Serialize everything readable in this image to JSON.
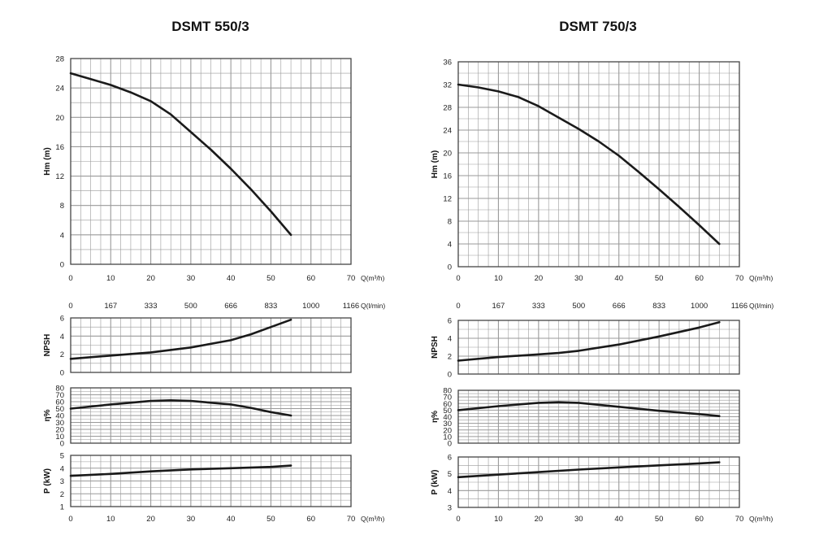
{
  "colors": {
    "curve": "#1a1a1a",
    "grid": "#9a9a9a",
    "frame": "#444444"
  },
  "chart_data": [
    {
      "type": "line",
      "title": "DSMT 550/3",
      "flow_label_m3h": "Q(m³/h)",
      "flow_label_lmin": "Q(l/min)",
      "x_ticks_m3h": [
        "0",
        "10",
        "20",
        "30",
        "40",
        "50",
        "60",
        "70"
      ],
      "x_ticks_lmin": [
        "0",
        "167",
        "333",
        "500",
        "666",
        "833",
        "1000",
        "1166"
      ],
      "xlim": [
        0,
        70
      ],
      "panels": [
        {
          "ylabel": "Hm  (m)",
          "ylim": [
            0,
            28
          ],
          "y_ticks": [
            "0",
            "4",
            "8",
            "12",
            "16",
            "20",
            "24",
            "28"
          ],
          "x": [
            0,
            5,
            10,
            15,
            20,
            25,
            30,
            35,
            40,
            45,
            50,
            55
          ],
          "y": [
            26,
            25.2,
            24.4,
            23.4,
            22.2,
            20.4,
            18.0,
            15.6,
            13.0,
            10.2,
            7.2,
            4.0
          ]
        },
        {
          "ylabel": "NPSH",
          "ylim": [
            0,
            6
          ],
          "y_ticks": [
            "0",
            "2",
            "4",
            "6"
          ],
          "x": [
            0,
            10,
            20,
            30,
            40,
            45,
            50,
            55
          ],
          "y": [
            1.5,
            1.85,
            2.2,
            2.75,
            3.55,
            4.2,
            5.0,
            5.8
          ]
        },
        {
          "ylabel": "η%",
          "ylim": [
            0,
            80
          ],
          "y_ticks": [
            "0",
            "10",
            "20",
            "30",
            "40",
            "50",
            "60",
            "70",
            "80"
          ],
          "x": [
            0,
            10,
            20,
            25,
            30,
            40,
            45,
            50,
            55
          ],
          "y": [
            50,
            56,
            61,
            62,
            61,
            56,
            51,
            45,
            40
          ]
        },
        {
          "ylabel": "P  (kW)",
          "ylim": [
            1,
            5
          ],
          "y_ticks": [
            "1",
            "2",
            "3",
            "4",
            "5"
          ],
          "x": [
            0,
            10,
            20,
            30,
            40,
            50,
            55
          ],
          "y": [
            3.4,
            3.55,
            3.75,
            3.9,
            4.0,
            4.1,
            4.2
          ]
        }
      ]
    },
    {
      "type": "line",
      "title": "DSMT 750/3",
      "flow_label_m3h": "Q(m³/h)",
      "flow_label_lmin": "Q(l/min)",
      "x_ticks_m3h": [
        "0",
        "10",
        "20",
        "30",
        "40",
        "50",
        "60",
        "70"
      ],
      "x_ticks_lmin": [
        "0",
        "167",
        "333",
        "500",
        "666",
        "833",
        "1000",
        "1166"
      ],
      "xlim": [
        0,
        70
      ],
      "panels": [
        {
          "ylabel": "Hm  (m)",
          "ylim": [
            0,
            36
          ],
          "y_ticks": [
            "0",
            "4",
            "8",
            "12",
            "16",
            "20",
            "24",
            "28",
            "32",
            "36"
          ],
          "x": [
            0,
            5,
            10,
            15,
            20,
            25,
            30,
            35,
            40,
            45,
            50,
            55,
            60,
            65
          ],
          "y": [
            32,
            31.5,
            30.8,
            29.8,
            28.2,
            26.2,
            24.2,
            22.0,
            19.5,
            16.6,
            13.6,
            10.5,
            7.3,
            4.0
          ]
        },
        {
          "ylabel": "NPSH",
          "ylim": [
            0,
            6
          ],
          "y_ticks": [
            "0",
            "2",
            "4",
            "6"
          ],
          "x": [
            0,
            10,
            20,
            25,
            30,
            40,
            50,
            60,
            65
          ],
          "y": [
            1.5,
            1.9,
            2.2,
            2.35,
            2.6,
            3.3,
            4.2,
            5.2,
            5.8
          ]
        },
        {
          "ylabel": "η%",
          "ylim": [
            0,
            80
          ],
          "y_ticks": [
            "0",
            "10",
            "20",
            "30",
            "40",
            "50",
            "60",
            "70",
            "80"
          ],
          "x": [
            0,
            10,
            20,
            25,
            30,
            40,
            50,
            60,
            65
          ],
          "y": [
            50,
            56,
            61,
            62,
            61,
            55,
            49,
            44,
            41
          ]
        },
        {
          "ylabel": "P  (kW)",
          "ylim": [
            3,
            6
          ],
          "y_ticks": [
            "3",
            "4",
            "5",
            "6"
          ],
          "x": [
            0,
            10,
            20,
            30,
            40,
            50,
            60,
            65
          ],
          "y": [
            4.8,
            4.95,
            5.1,
            5.25,
            5.38,
            5.5,
            5.62,
            5.68
          ]
        }
      ]
    }
  ]
}
